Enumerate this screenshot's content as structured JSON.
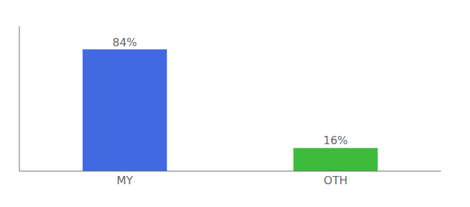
{
  "chart_data": {
    "type": "bar",
    "categories": [
      "MY",
      "OTH"
    ],
    "values": [
      84,
      16
    ],
    "value_labels": [
      "84%",
      "16%"
    ],
    "colors": [
      "#4169e1",
      "#3dbb3d"
    ],
    "ylim": [
      0,
      100
    ],
    "data_labels": true,
    "tick_labels": "x"
  }
}
